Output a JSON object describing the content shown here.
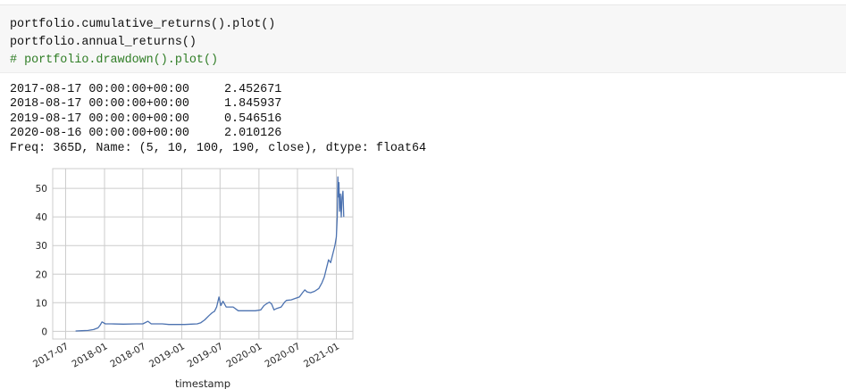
{
  "notebook": {
    "code_lines": [
      "portfolio.cumulative_returns().plot()",
      "portfolio.annual_returns()",
      "# portfolio.drawdown().plot()"
    ],
    "output": {
      "rows": [
        {
          "date": "2017-08-17 00:00:00+00:00",
          "value": "2.452671"
        },
        {
          "date": "2018-08-17 00:00:00+00:00",
          "value": "1.845937"
        },
        {
          "date": "2019-08-17 00:00:00+00:00",
          "value": "0.546516"
        },
        {
          "date": "2020-08-16 00:00:00+00:00",
          "value": "2.010126"
        }
      ],
      "freq_line": "Freq: 365D, Name: (5, 10, 100, 190, close), dtype: float64"
    }
  },
  "chart_data": {
    "type": "line",
    "xlabel": "timestamp",
    "ylabel": "",
    "x_ticks": [
      "2017-07",
      "2018-01",
      "2018-07",
      "2019-01",
      "2019-07",
      "2020-01",
      "2020-07",
      "2021-01"
    ],
    "y_ticks": [
      "0",
      "10",
      "20",
      "30",
      "40",
      "50"
    ],
    "xlim": [
      "2017-05-01",
      "2021-03-20"
    ],
    "ylim": [
      -2.7,
      56.9
    ],
    "grid": true,
    "line_color": "#4c72b0",
    "series": [
      {
        "x": [
          "2017-08-17",
          "2017-09-15",
          "2017-10-15",
          "2017-11-10",
          "2017-12-01",
          "2017-12-10",
          "2017-12-20",
          "2018-01-05",
          "2018-02-01",
          "2018-04-01",
          "2018-06-01",
          "2018-07-01",
          "2018-07-25",
          "2018-08-10",
          "2018-09-01",
          "2018-10-01",
          "2018-11-01",
          "2018-12-15",
          "2019-01-15",
          "2019-02-15",
          "2019-03-15",
          "2019-04-01",
          "2019-04-20",
          "2019-05-10",
          "2019-05-25",
          "2019-06-05",
          "2019-06-15",
          "2019-06-26",
          "2019-07-05",
          "2019-07-15",
          "2019-07-30",
          "2019-08-15",
          "2019-09-01",
          "2019-09-25",
          "2019-10-10",
          "2019-10-25",
          "2019-11-15",
          "2019-12-15",
          "2020-01-10",
          "2020-01-25",
          "2020-02-10",
          "2020-02-20",
          "2020-03-01",
          "2020-03-12",
          "2020-03-25",
          "2020-04-15",
          "2020-05-01",
          "2020-05-10",
          "2020-06-01",
          "2020-06-20",
          "2020-07-10",
          "2020-07-25",
          "2020-08-05",
          "2020-08-15",
          "2020-09-01",
          "2020-09-20",
          "2020-10-10",
          "2020-10-25",
          "2020-11-05",
          "2020-11-15",
          "2020-11-25",
          "2020-12-05",
          "2020-12-15",
          "2020-12-25",
          "2021-01-01",
          "2021-01-05",
          "2021-01-08",
          "2021-01-10",
          "2021-01-13",
          "2021-01-16",
          "2021-01-20",
          "2021-01-24",
          "2021-01-28",
          "2021-02-01",
          "2021-02-05"
        ],
        "y": [
          0.1,
          0.2,
          0.3,
          0.6,
          1.2,
          2.0,
          3.3,
          2.6,
          2.6,
          2.5,
          2.6,
          2.6,
          3.5,
          2.6,
          2.6,
          2.6,
          2.4,
          2.4,
          2.4,
          2.5,
          2.6,
          3.0,
          4.0,
          5.5,
          6.5,
          7.0,
          8.5,
          12.0,
          9.0,
          10.5,
          8.5,
          8.5,
          8.5,
          7.2,
          7.2,
          7.2,
          7.2,
          7.2,
          7.5,
          9.0,
          9.8,
          10.2,
          9.5,
          7.5,
          8.0,
          8.5,
          10.2,
          10.8,
          11.0,
          11.5,
          12.0,
          13.5,
          14.5,
          13.8,
          13.5,
          14.0,
          15.0,
          17.0,
          19.0,
          22.0,
          25.0,
          24.0,
          27.0,
          30.0,
          33.0,
          40.0,
          54.0,
          47.0,
          52.0,
          42.0,
          48.0,
          40.0,
          47.0,
          49.0,
          40.0
        ]
      }
    ]
  }
}
